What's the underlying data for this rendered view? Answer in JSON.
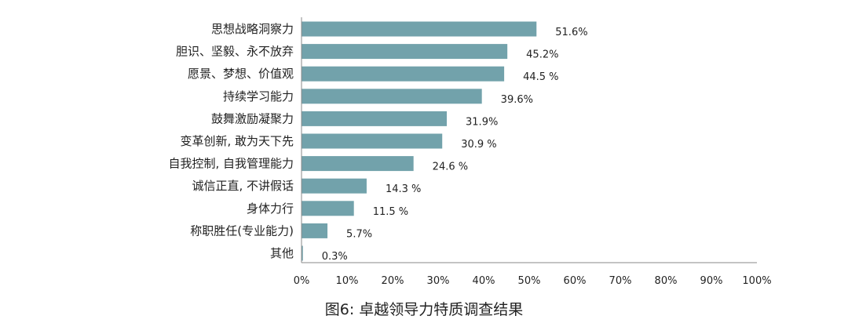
{
  "chart_data": {
    "type": "bar",
    "orientation": "horizontal",
    "title": "图6: 卓越领导力特质调查结果",
    "categories": [
      "思想战略洞察力",
      "胆识、坚毅、永不放弃",
      "愿景、梦想、价值观",
      "持续学习能力",
      "鼓舞激励凝聚力",
      "变革创新, 敢为天下先",
      "自我控制, 自我管理能力",
      "诚信正直, 不讲假话",
      "身体力行",
      "称职胜任(专业能力)",
      "其他"
    ],
    "values": [
      51.6,
      45.2,
      44.5,
      39.6,
      31.9,
      30.9,
      24.6,
      14.3,
      11.5,
      5.7,
      0.3
    ],
    "value_labels": [
      "51.6%",
      "45.2%",
      "44.5 %",
      "39.6%",
      "31.9%",
      "30.9 %",
      "24.6  %",
      "14.3 %",
      "11.5 %",
      "5.7%",
      "0.3%"
    ],
    "xlim": [
      0,
      100
    ],
    "x_ticks": [
      "0%",
      "10%",
      "20%",
      "30%",
      "40%",
      "50%",
      "60%",
      "70%",
      "80%",
      "90%",
      "100%"
    ],
    "grid": false,
    "bar_color": "#72a2ab"
  }
}
